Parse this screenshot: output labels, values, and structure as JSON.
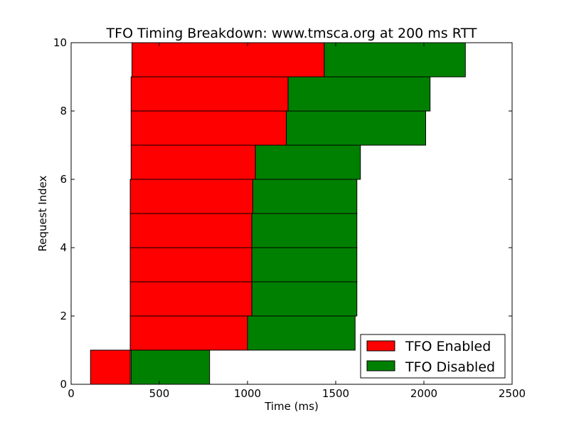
{
  "chart_data": {
    "type": "bar",
    "orientation": "horizontal",
    "stacked": true,
    "title": "TFO Timing Breakdown: www.tmsca.org at 200 ms RTT",
    "xlabel": "Time (ms)",
    "ylabel": "Request Index",
    "xlim": [
      0,
      2500
    ],
    "ylim": [
      0,
      10
    ],
    "xticks": [
      0,
      500,
      1000,
      1500,
      2000,
      2500
    ],
    "yticks": [
      0,
      2,
      4,
      6,
      8,
      10
    ],
    "legend_position": "lower-right",
    "grid": false,
    "series": [
      {
        "name": "TFO Enabled",
        "color": "#ff0000",
        "bars": [
          {
            "index": 0,
            "start": 110,
            "end": 335
          },
          {
            "index": 1,
            "start": 335,
            "end": 1000
          },
          {
            "index": 2,
            "start": 335,
            "end": 1025
          },
          {
            "index": 3,
            "start": 335,
            "end": 1025
          },
          {
            "index": 4,
            "start": 335,
            "end": 1025
          },
          {
            "index": 5,
            "start": 335,
            "end": 1030
          },
          {
            "index": 6,
            "start": 340,
            "end": 1045
          },
          {
            "index": 7,
            "start": 340,
            "end": 1220
          },
          {
            "index": 8,
            "start": 340,
            "end": 1230
          },
          {
            "index": 9,
            "start": 345,
            "end": 1435
          }
        ]
      },
      {
        "name": "TFO Disabled",
        "color": "#008000",
        "bars": [
          {
            "index": 0,
            "start": 340,
            "end": 785
          },
          {
            "index": 1,
            "start": 1000,
            "end": 1610
          },
          {
            "index": 2,
            "start": 1025,
            "end": 1620
          },
          {
            "index": 3,
            "start": 1025,
            "end": 1620
          },
          {
            "index": 4,
            "start": 1025,
            "end": 1620
          },
          {
            "index": 5,
            "start": 1030,
            "end": 1620
          },
          {
            "index": 6,
            "start": 1045,
            "end": 1640
          },
          {
            "index": 7,
            "start": 1220,
            "end": 2010
          },
          {
            "index": 8,
            "start": 1230,
            "end": 2035
          },
          {
            "index": 9,
            "start": 1435,
            "end": 2235
          }
        ]
      }
    ]
  }
}
